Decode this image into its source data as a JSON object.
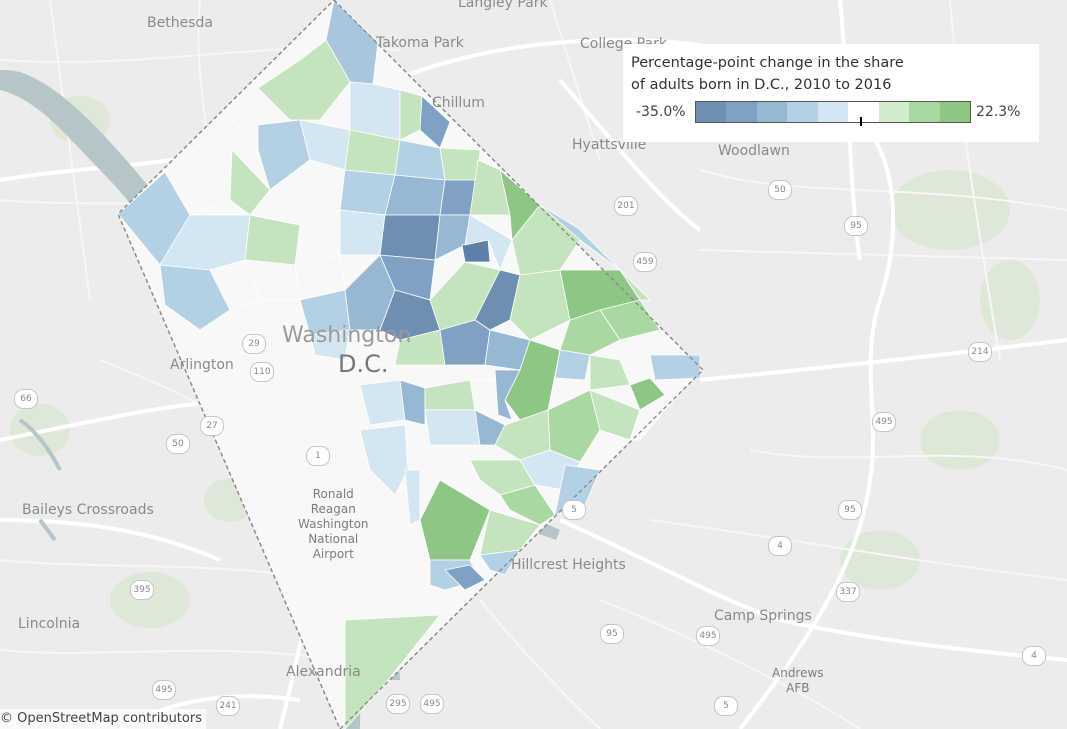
{
  "legend": {
    "title_line1": "Percentage-point change in the share",
    "title_line2": "of adults born in D.C., 2010 to 2016",
    "min_label": "-35.0%",
    "max_label": "22.3%",
    "colors": [
      "#6d8fb2",
      "#7fa2c4",
      "#97b8d4",
      "#b3d0e4",
      "#d3e6f1",
      "#ffffff",
      "#d1ebcc",
      "#a9d8a0",
      "#8dc685"
    ],
    "current_value_fraction": 0.6
  },
  "attribution": "© OpenStreetMap contributors",
  "places": {
    "bethesda": "Bethesda",
    "langley_park": "Langley Park",
    "takoma_park": "Takoma Park",
    "college_park": "College Park",
    "chillum": "Chillum",
    "hyattsville": "Hyattsville",
    "woodlawn": "Woodlawn",
    "washington": "Washington",
    "dc": "D.C.",
    "arlington": "Arlington",
    "baileys_crossroads": "Baileys Crossroads",
    "ronald_reagan": "Ronald\nReagan\nWashington\nNational\nAirport",
    "hillcrest_heights": "Hillcrest Heights",
    "camp_springs": "Camp Springs",
    "andrews_afb": "Andrews\nAFB",
    "lincolnia": "Lincolnia",
    "alexandria": "Alexandria"
  },
  "road_shields": [
    "201",
    "50",
    "459",
    "95",
    "214",
    "495",
    "66",
    "27",
    "50",
    "1",
    "5",
    "4",
    "95",
    "337",
    "395",
    "95",
    "495",
    "495",
    "241",
    "5",
    "4",
    "295",
    "495",
    "110",
    "29"
  ],
  "map_colors": {
    "background": "#ececec",
    "road_major": "#ffffff",
    "road_minor": "#f7f7f7",
    "water": "#b5c6c9",
    "park": "#dde8d6",
    "boundary": "#888888"
  }
}
